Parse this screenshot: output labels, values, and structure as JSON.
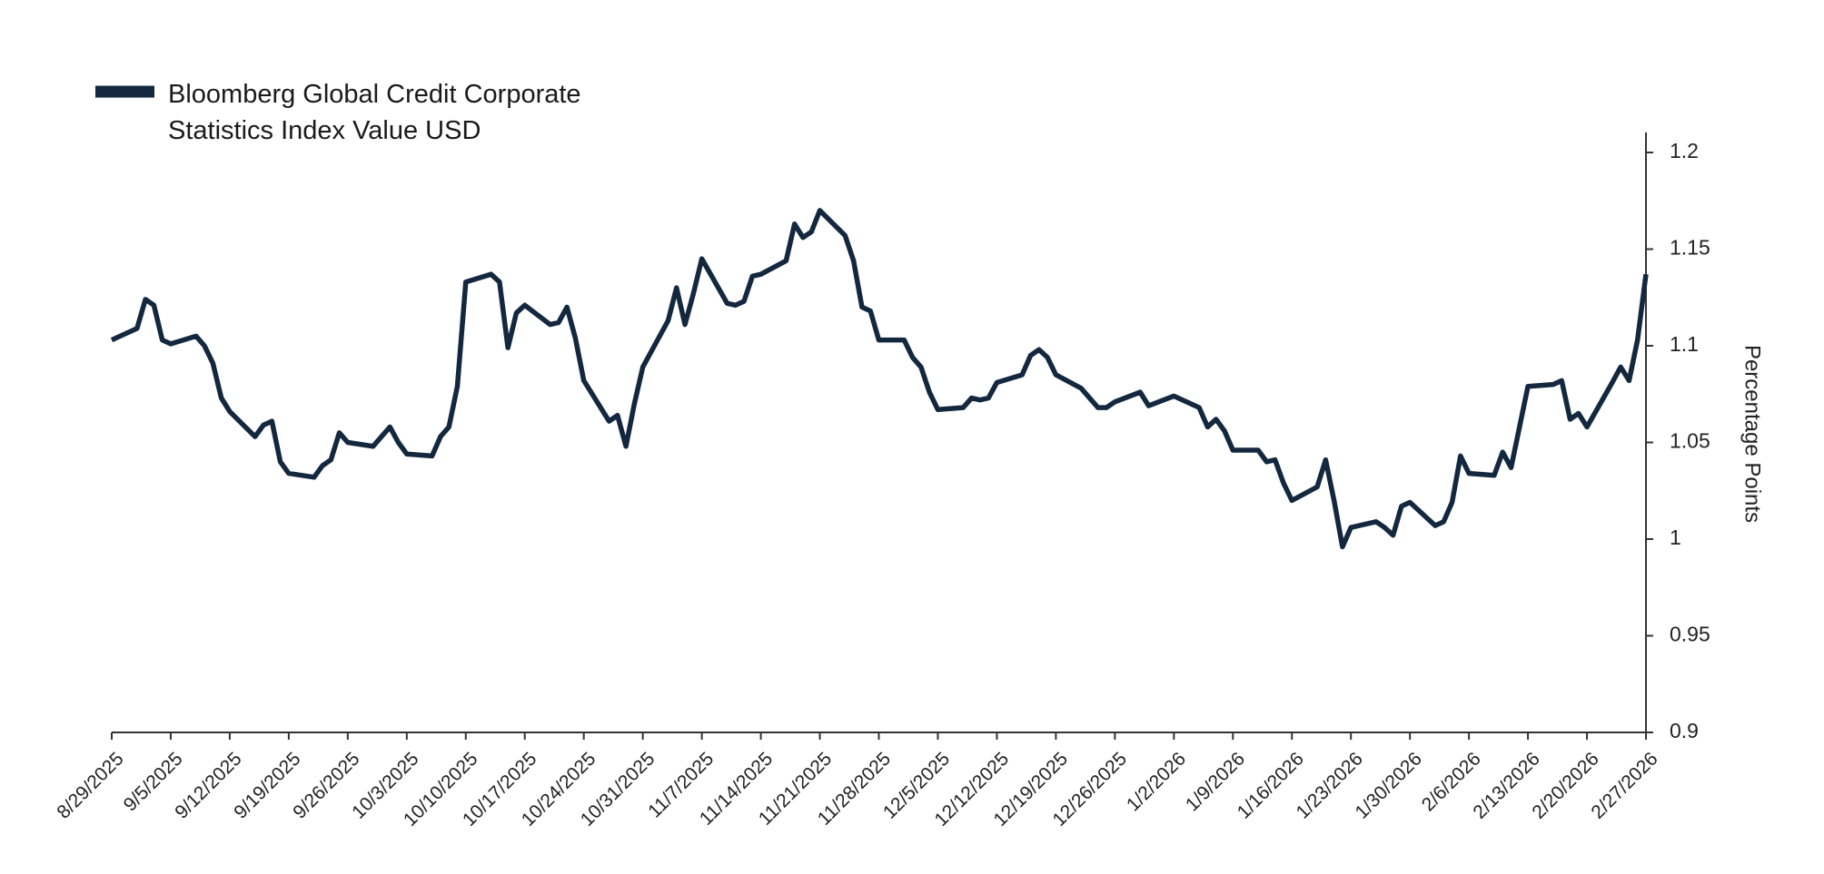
{
  "chart_data": {
    "type": "line",
    "y_label": "Percentage Points",
    "legend": "top-left",
    "x": [
      "8/29/2025",
      "9/1/2025",
      "9/2/2025",
      "9/3/2025",
      "9/4/2025",
      "9/5/2025",
      "9/8/2025",
      "9/9/2025",
      "9/10/2025",
      "9/11/2025",
      "9/12/2025",
      "9/15/2025",
      "9/16/2025",
      "9/17/2025",
      "9/18/2025",
      "9/19/2025",
      "9/22/2025",
      "9/23/2025",
      "9/24/2025",
      "9/25/2025",
      "9/26/2025",
      "9/29/2025",
      "9/30/2025",
      "10/1/2025",
      "10/2/2025",
      "10/3/2025",
      "10/6/2025",
      "10/7/2025",
      "10/8/2025",
      "10/9/2025",
      "10/10/2025",
      "10/13/2025",
      "10/14/2025",
      "10/15/2025",
      "10/16/2025",
      "10/17/2025",
      "10/20/2025",
      "10/21/2025",
      "10/22/2025",
      "10/23/2025",
      "10/24/2025",
      "10/27/2025",
      "10/28/2025",
      "10/29/2025",
      "10/30/2025",
      "10/31/2025",
      "11/3/2025",
      "11/4/2025",
      "11/5/2025",
      "11/6/2025",
      "11/7/2025",
      "11/10/2025",
      "11/11/2025",
      "11/12/2025",
      "11/13/2025",
      "11/14/2025",
      "11/17/2025",
      "11/18/2025",
      "11/19/2025",
      "11/20/2025",
      "11/21/2025",
      "11/24/2025",
      "11/25/2025",
      "11/26/2025",
      "11/27/2025",
      "11/28/2025",
      "12/1/2025",
      "12/2/2025",
      "12/3/2025",
      "12/4/2025",
      "12/5/2025",
      "12/8/2025",
      "12/9/2025",
      "12/10/2025",
      "12/11/2025",
      "12/12/2025",
      "12/15/2025",
      "12/16/2025",
      "12/17/2025",
      "12/18/2025",
      "12/19/2025",
      "12/22/2025",
      "12/23/2025",
      "12/24/2025",
      "12/25/2025",
      "12/26/2025",
      "12/29/2025",
      "12/30/2025",
      "1/2/2026",
      "1/5/2026",
      "1/6/2026",
      "1/7/2026",
      "1/8/2026",
      "1/9/2026",
      "1/12/2026",
      "1/13/2026",
      "1/14/2026",
      "1/15/2026",
      "1/16/2026",
      "1/19/2026",
      "1/20/2026",
      "1/21/2026",
      "1/22/2026",
      "1/23/2026",
      "1/26/2026",
      "1/27/2026",
      "1/28/2026",
      "1/29/2026",
      "1/30/2026",
      "2/2/2026",
      "2/3/2026",
      "2/4/2026",
      "2/5/2026",
      "2/6/2026",
      "2/9/2026",
      "2/10/2026",
      "2/11/2026",
      "2/12/2026",
      "2/13/2026",
      "2/16/2026",
      "2/17/2026",
      "2/18/2026",
      "2/19/2026",
      "2/20/2026",
      "2/23/2026",
      "2/24/2026",
      "2/25/2026",
      "2/26/2026",
      "2/27/2026"
    ],
    "series": [
      {
        "name": "Bloomberg Global Credit Corporate Statistics Index Value USD",
        "color": "#13283f",
        "values": [
          1.103,
          1.109,
          1.124,
          1.121,
          1.103,
          1.101,
          1.105,
          1.1,
          1.091,
          1.073,
          1.066,
          1.053,
          1.059,
          1.061,
          1.04,
          1.034,
          1.032,
          1.038,
          1.041,
          1.055,
          1.05,
          1.048,
          1.053,
          1.058,
          1.05,
          1.044,
          1.043,
          1.053,
          1.058,
          1.079,
          1.133,
          1.137,
          1.133,
          1.099,
          1.117,
          1.121,
          1.111,
          1.112,
          1.12,
          1.104,
          1.082,
          1.061,
          1.064,
          1.048,
          1.07,
          1.089,
          1.113,
          1.13,
          1.111,
          1.127,
          1.145,
          1.122,
          1.121,
          1.123,
          1.136,
          1.137,
          1.144,
          1.163,
          1.156,
          1.159,
          1.17,
          1.157,
          1.144,
          1.12,
          1.118,
          1.103,
          1.103,
          1.094,
          1.089,
          1.076,
          1.067,
          1.068,
          1.073,
          1.072,
          1.073,
          1.081,
          1.085,
          1.095,
          1.098,
          1.094,
          1.085,
          1.078,
          1.073,
          1.068,
          1.068,
          1.071,
          1.076,
          1.069,
          1.074,
          1.068,
          1.058,
          1.062,
          1.056,
          1.046,
          1.046,
          1.04,
          1.041,
          1.029,
          1.02,
          1.027,
          1.041,
          1.02,
          0.996,
          1.006,
          1.009,
          1.006,
          1.002,
          1.017,
          1.019,
          1.007,
          1.009,
          1.019,
          1.043,
          1.034,
          1.033,
          1.045,
          1.037,
          1.058,
          1.079,
          1.08,
          1.082,
          1.062,
          1.065,
          1.058,
          1.081,
          1.089,
          1.082,
          1.103,
          1.137
        ]
      }
    ],
    "xlim": [
      "8/29/2025",
      "2/27/2026"
    ],
    "xticks": [
      "8/29/2025",
      "9/5/2025",
      "9/12/2025",
      "9/19/2025",
      "9/26/2025",
      "10/3/2025",
      "10/10/2025",
      "10/17/2025",
      "10/24/2025",
      "10/31/2025",
      "11/7/2025",
      "11/14/2025",
      "11/21/2025",
      "11/28/2025",
      "12/5/2025",
      "12/12/2025",
      "12/19/2025",
      "12/26/2025",
      "1/2/2026",
      "1/9/2026",
      "1/16/2026",
      "1/23/2026",
      "1/30/2026",
      "2/6/2026",
      "2/13/2026",
      "2/20/2026",
      "2/27/2026"
    ],
    "ylim": [
      0.9,
      1.2
    ],
    "yticks": [
      0.9,
      0.95,
      1,
      1.05,
      1.1,
      1.15,
      1.2
    ],
    "y_axis_side": "right"
  }
}
